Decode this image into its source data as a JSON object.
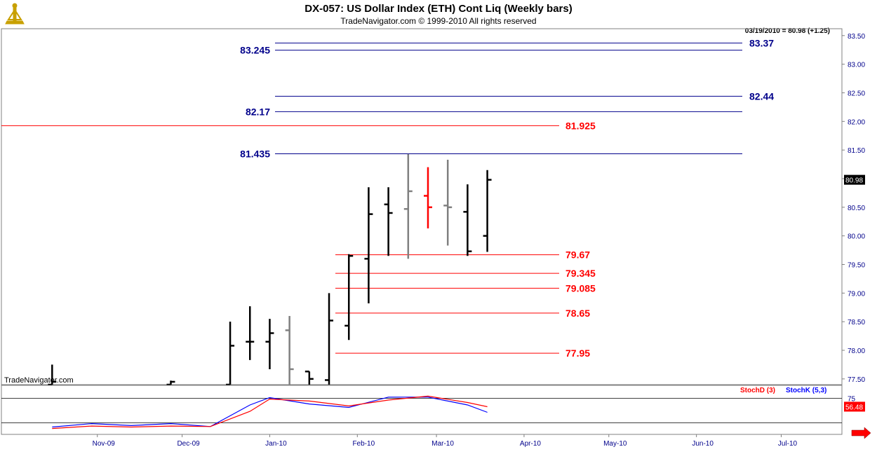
{
  "header": {
    "title": "DX-057:  US Dollar Index (ETH) Cont Liq  (Weekly bars)",
    "copyright": "TradeNavigator.com © 1999-2010 All rights reserved",
    "quote": "03/19/2010 = 80.98 (+1.25)",
    "watermark": "TradeNavigator.com"
  },
  "colors": {
    "up_bar": "#000000",
    "down_bar": "#808080",
    "highlight_bar": "#ff0000",
    "resistance_line": "#00008b",
    "support_line": "#ff0000",
    "stoch_k": "#0000ff",
    "stoch_d": "#ff0000",
    "axis_text": "#00008b",
    "logo": "#c8a000"
  },
  "chart_data": [
    {
      "type": "ohlc",
      "title": "DX-057:  US Dollar Index (ETH) Cont Liq  (Weekly bars)",
      "ylim": [
        77.4,
        83.62
      ],
      "x_date_range": [
        "2009-10-05",
        "2010-07-20"
      ],
      "y_ticks": [
        "83.50",
        "83.00",
        "82.50",
        "82.00",
        "81.50",
        "81.00",
        "80.50",
        "80.00",
        "79.50",
        "79.00",
        "78.50",
        "78.00",
        "77.50"
      ],
      "y_tick_values": [
        83.5,
        83.0,
        82.5,
        82.0,
        81.5,
        81.0,
        80.5,
        80.0,
        79.5,
        79.0,
        78.5,
        78.0,
        77.5
      ],
      "x_ticks": [
        {
          "label": "Nov-09",
          "date": "2009-11-01"
        },
        {
          "label": "Dec-09",
          "date": "2009-12-01"
        },
        {
          "label": "Jan-10",
          "date": "2010-01-01"
        },
        {
          "label": "Feb-10",
          "date": "2010-02-01"
        },
        {
          "label": "Mar-10",
          "date": "2010-03-01"
        },
        {
          "label": "Apr-10",
          "date": "2010-04-01"
        },
        {
          "label": "May-10",
          "date": "2010-05-01"
        },
        {
          "label": "Jun-10",
          "date": "2010-06-01"
        },
        {
          "label": "Jul-10",
          "date": "2010-07-01"
        }
      ],
      "bars": [
        {
          "date": "2009-10-16",
          "open": 77.4,
          "high": 77.75,
          "low": 77.4,
          "close": 77.45,
          "color": "up"
        },
        {
          "date": "2009-11-27",
          "open": 77.4,
          "high": 77.47,
          "low": 77.4,
          "close": 77.45,
          "color": "up"
        },
        {
          "date": "2009-12-18",
          "open": 77.4,
          "high": 78.5,
          "low": 77.4,
          "close": 78.08,
          "color": "up"
        },
        {
          "date": "2009-12-25",
          "open": 78.15,
          "high": 78.77,
          "low": 77.83,
          "close": 78.15,
          "color": "up"
        },
        {
          "date": "2010-01-01",
          "open": 78.15,
          "high": 78.55,
          "low": 77.67,
          "close": 78.3,
          "color": "up"
        },
        {
          "date": "2010-01-08",
          "open": 78.35,
          "high": 78.6,
          "low": 77.4,
          "close": 77.67,
          "color": "down"
        },
        {
          "date": "2010-01-15",
          "open": 77.63,
          "high": 77.63,
          "low": 77.4,
          "close": 77.5,
          "color": "up"
        },
        {
          "date": "2010-01-22",
          "open": 77.48,
          "high": 79.0,
          "low": 77.4,
          "close": 78.52,
          "color": "up"
        },
        {
          "date": "2010-01-29",
          "open": 78.43,
          "high": 79.68,
          "low": 78.18,
          "close": 79.65,
          "color": "up"
        },
        {
          "date": "2010-02-05",
          "open": 79.6,
          "high": 80.85,
          "low": 78.82,
          "close": 80.38,
          "color": "up"
        },
        {
          "date": "2010-02-12",
          "open": 80.55,
          "high": 80.85,
          "low": 79.65,
          "close": 80.4,
          "color": "up"
        },
        {
          "date": "2010-02-19",
          "open": 80.47,
          "high": 81.43,
          "low": 79.6,
          "close": 80.78,
          "color": "down"
        },
        {
          "date": "2010-02-26",
          "open": 80.7,
          "high": 81.2,
          "low": 80.13,
          "close": 80.5,
          "color": "highlight"
        },
        {
          "date": "2010-03-05",
          "open": 80.53,
          "high": 81.33,
          "low": 79.83,
          "close": 80.5,
          "color": "down"
        },
        {
          "date": "2010-03-12",
          "open": 80.42,
          "high": 80.9,
          "low": 79.65,
          "close": 79.73,
          "color": "up"
        },
        {
          "date": "2010-03-19",
          "open": 80.0,
          "high": 81.15,
          "low": 79.72,
          "close": 80.98,
          "color": "up"
        }
      ],
      "levels": [
        {
          "value": 83.37,
          "label": "83.37",
          "side": "right",
          "color": "resistance"
        },
        {
          "value": 83.245,
          "label": "83.245",
          "side": "left",
          "color": "resistance"
        },
        {
          "value": 82.44,
          "label": "82.44",
          "side": "right",
          "color": "resistance"
        },
        {
          "value": 82.17,
          "label": "82.17",
          "side": "left",
          "color": "resistance"
        },
        {
          "value": 81.925,
          "label": "81.925",
          "side": "right-mid",
          "color": "support",
          "full": true
        },
        {
          "value": 81.435,
          "label": "81.435",
          "side": "left",
          "color": "resistance"
        },
        {
          "value": 79.67,
          "label": "79.67",
          "side": "right-mid",
          "color": "support"
        },
        {
          "value": 79.345,
          "label": "79.345",
          "side": "right-mid",
          "color": "support"
        },
        {
          "value": 79.085,
          "label": "79.085",
          "side": "right-mid",
          "color": "support"
        },
        {
          "value": 78.65,
          "label": "78.65",
          "side": "right-mid",
          "color": "support"
        },
        {
          "value": 77.95,
          "label": "77.95",
          "side": "right-mid",
          "color": "support"
        }
      ],
      "last_price_label": "80.98",
      "last_price": 80.98
    },
    {
      "type": "line",
      "title": "",
      "legend": [
        "StochD (3)",
        "StochK (5,3)"
      ],
      "ylim": [
        0,
        100
      ],
      "y_tick_label": "75",
      "y_tick_value": 75,
      "ref_levels": [
        75,
        25
      ],
      "last_value_label": "56.48",
      "series": [
        {
          "name": "StochK (5,3)",
          "points": [
            {
              "date": "2009-10-16",
              "value": 15
            },
            {
              "date": "2009-10-30",
              "value": 22
            },
            {
              "date": "2009-11-13",
              "value": 18
            },
            {
              "date": "2009-11-27",
              "value": 22
            },
            {
              "date": "2009-12-11",
              "value": 16
            },
            {
              "date": "2009-12-25",
              "value": 60
            },
            {
              "date": "2010-01-01",
              "value": 75
            },
            {
              "date": "2010-01-15",
              "value": 62
            },
            {
              "date": "2010-01-29",
              "value": 55
            },
            {
              "date": "2010-02-12",
              "value": 76
            },
            {
              "date": "2010-02-26",
              "value": 76
            },
            {
              "date": "2010-03-12",
              "value": 60
            },
            {
              "date": "2010-03-19",
              "value": 45
            }
          ]
        },
        {
          "name": "StochD (3)",
          "points": [
            {
              "date": "2009-10-16",
              "value": 12
            },
            {
              "date": "2009-10-30",
              "value": 17
            },
            {
              "date": "2009-11-13",
              "value": 15
            },
            {
              "date": "2009-11-27",
              "value": 17
            },
            {
              "date": "2009-12-11",
              "value": 16
            },
            {
              "date": "2009-12-25",
              "value": 47
            },
            {
              "date": "2010-01-01",
              "value": 72
            },
            {
              "date": "2010-01-15",
              "value": 68
            },
            {
              "date": "2010-01-29",
              "value": 58
            },
            {
              "date": "2010-02-12",
              "value": 70
            },
            {
              "date": "2010-02-26",
              "value": 78
            },
            {
              "date": "2010-03-12",
              "value": 65
            },
            {
              "date": "2010-03-19",
              "value": 56.48
            }
          ]
        }
      ]
    }
  ]
}
